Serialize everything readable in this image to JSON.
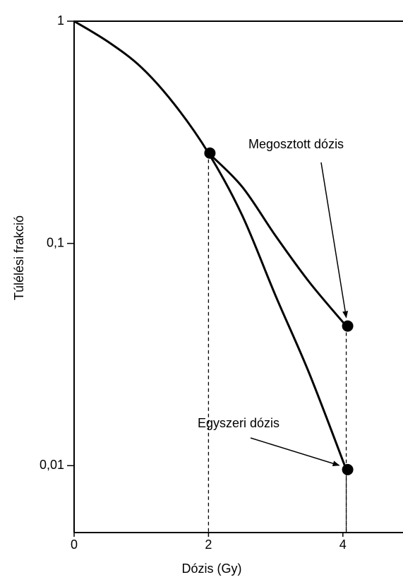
{
  "chart_data": {
    "type": "line",
    "xlabel": "Dózis (Gy)",
    "ylabel": "Túlélési frakció",
    "log_y": true,
    "xlim": [
      0,
      4.9
    ],
    "ylim": [
      0.005,
      1
    ],
    "xticks": [
      0,
      2,
      4
    ],
    "yticks": [
      1,
      {
        "value": 0.1,
        "label": "0,1"
      },
      {
        "value": 0.01,
        "label": "0,01"
      }
    ],
    "color": "#000000",
    "series": [
      {
        "name": "Egyszeri dózis",
        "color": "#000000",
        "x": [
          0,
          0.5,
          1,
          1.5,
          2,
          2.5,
          3,
          3.5,
          4.05
        ],
        "values": [
          1,
          0.81,
          0.62,
          0.42,
          0.255,
          0.134,
          0.058,
          0.026,
          0.0096
        ]
      },
      {
        "name": "Megosztott dózis",
        "color": "#000000",
        "x": [
          2,
          2.5,
          3,
          3.5,
          4.05
        ],
        "values": [
          0.255,
          0.18,
          0.108,
          0.067,
          0.0425
        ]
      }
    ]
  }
}
